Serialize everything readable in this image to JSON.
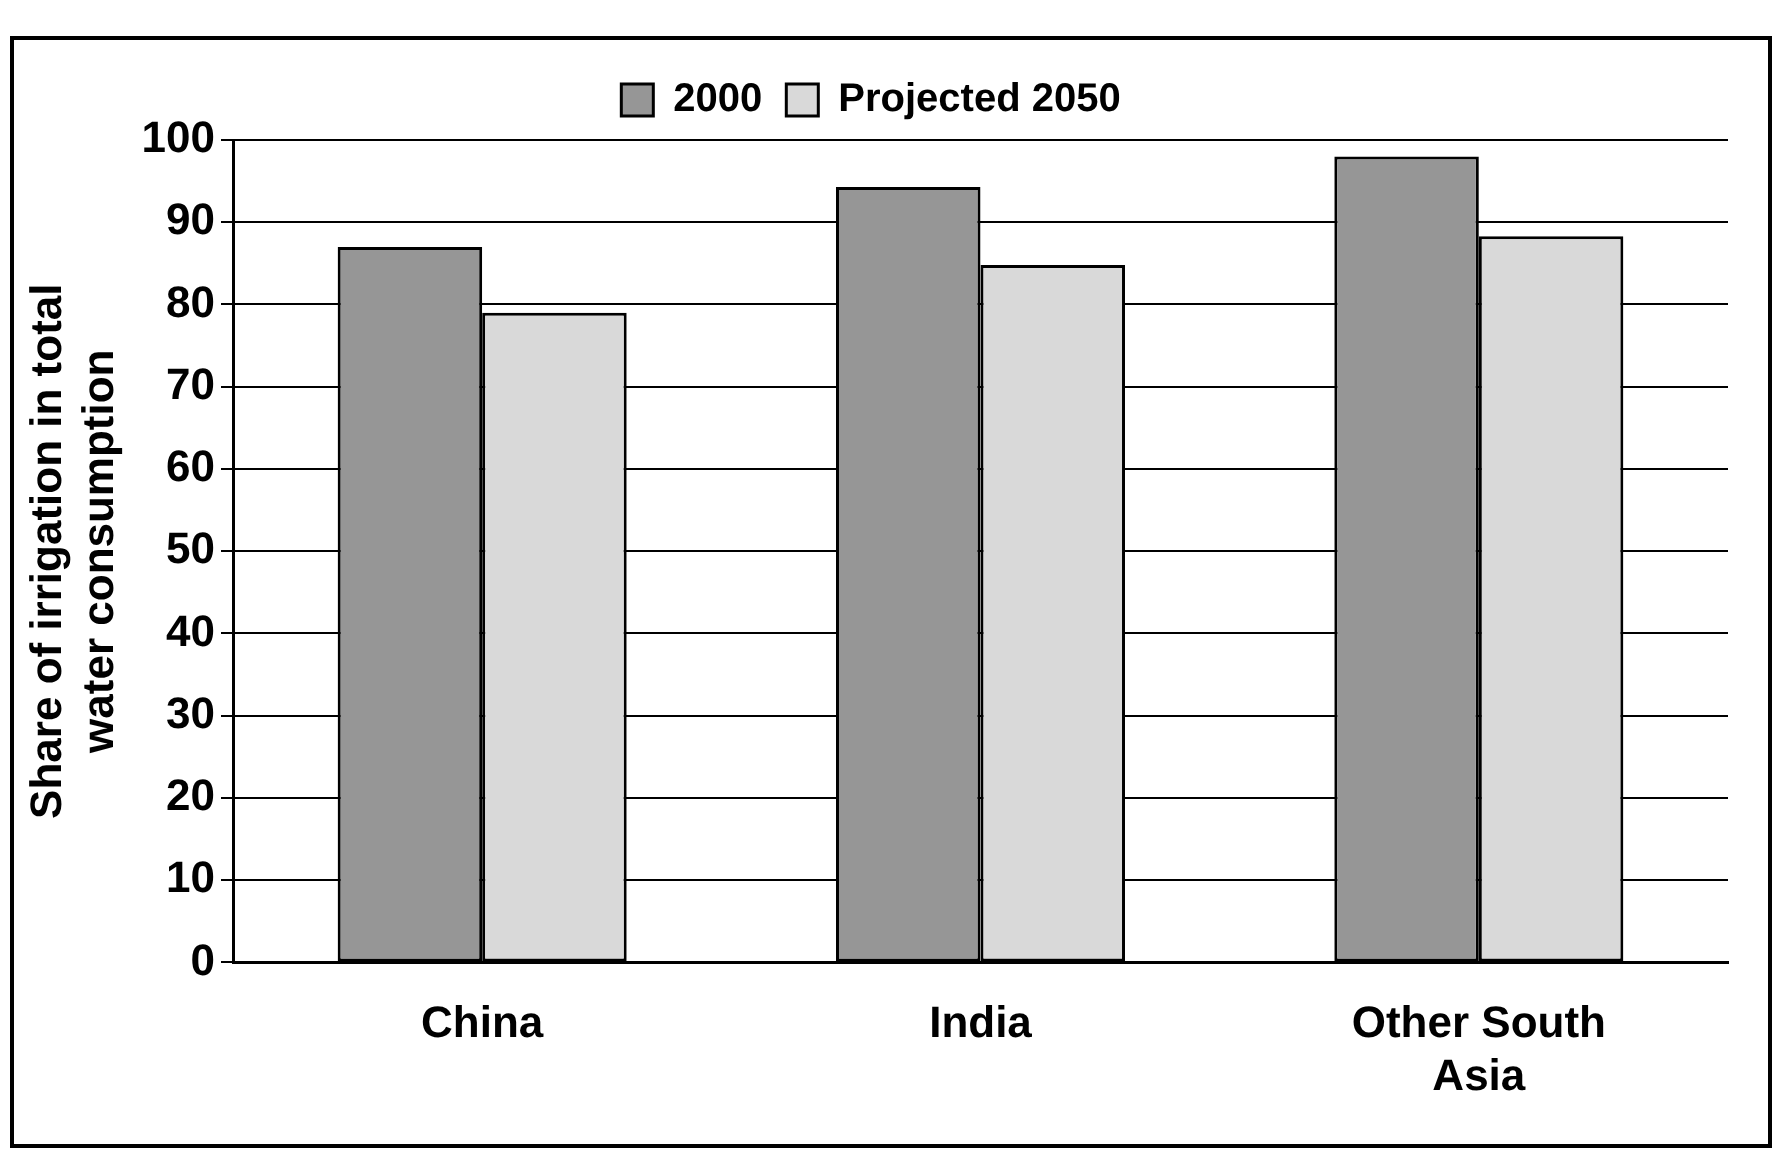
{
  "chart_data": {
    "type": "bar",
    "ylabel": "Share of irrigation in total water consumption",
    "categories": [
      "China",
      "India",
      "Other South Asia"
    ],
    "series": [
      {
        "name": "2000",
        "color": "#969696",
        "values": [
          87,
          94.3,
          98
        ]
      },
      {
        "name": "Projected 2050",
        "color": "#d9d9d9",
        "values": [
          79,
          84.8,
          88.3
        ]
      }
    ],
    "ylim": [
      0,
      100
    ],
    "yticks": [
      0,
      10,
      20,
      30,
      40,
      50,
      60,
      70,
      80,
      90,
      100
    ],
    "grid": "y",
    "legend": "top"
  }
}
